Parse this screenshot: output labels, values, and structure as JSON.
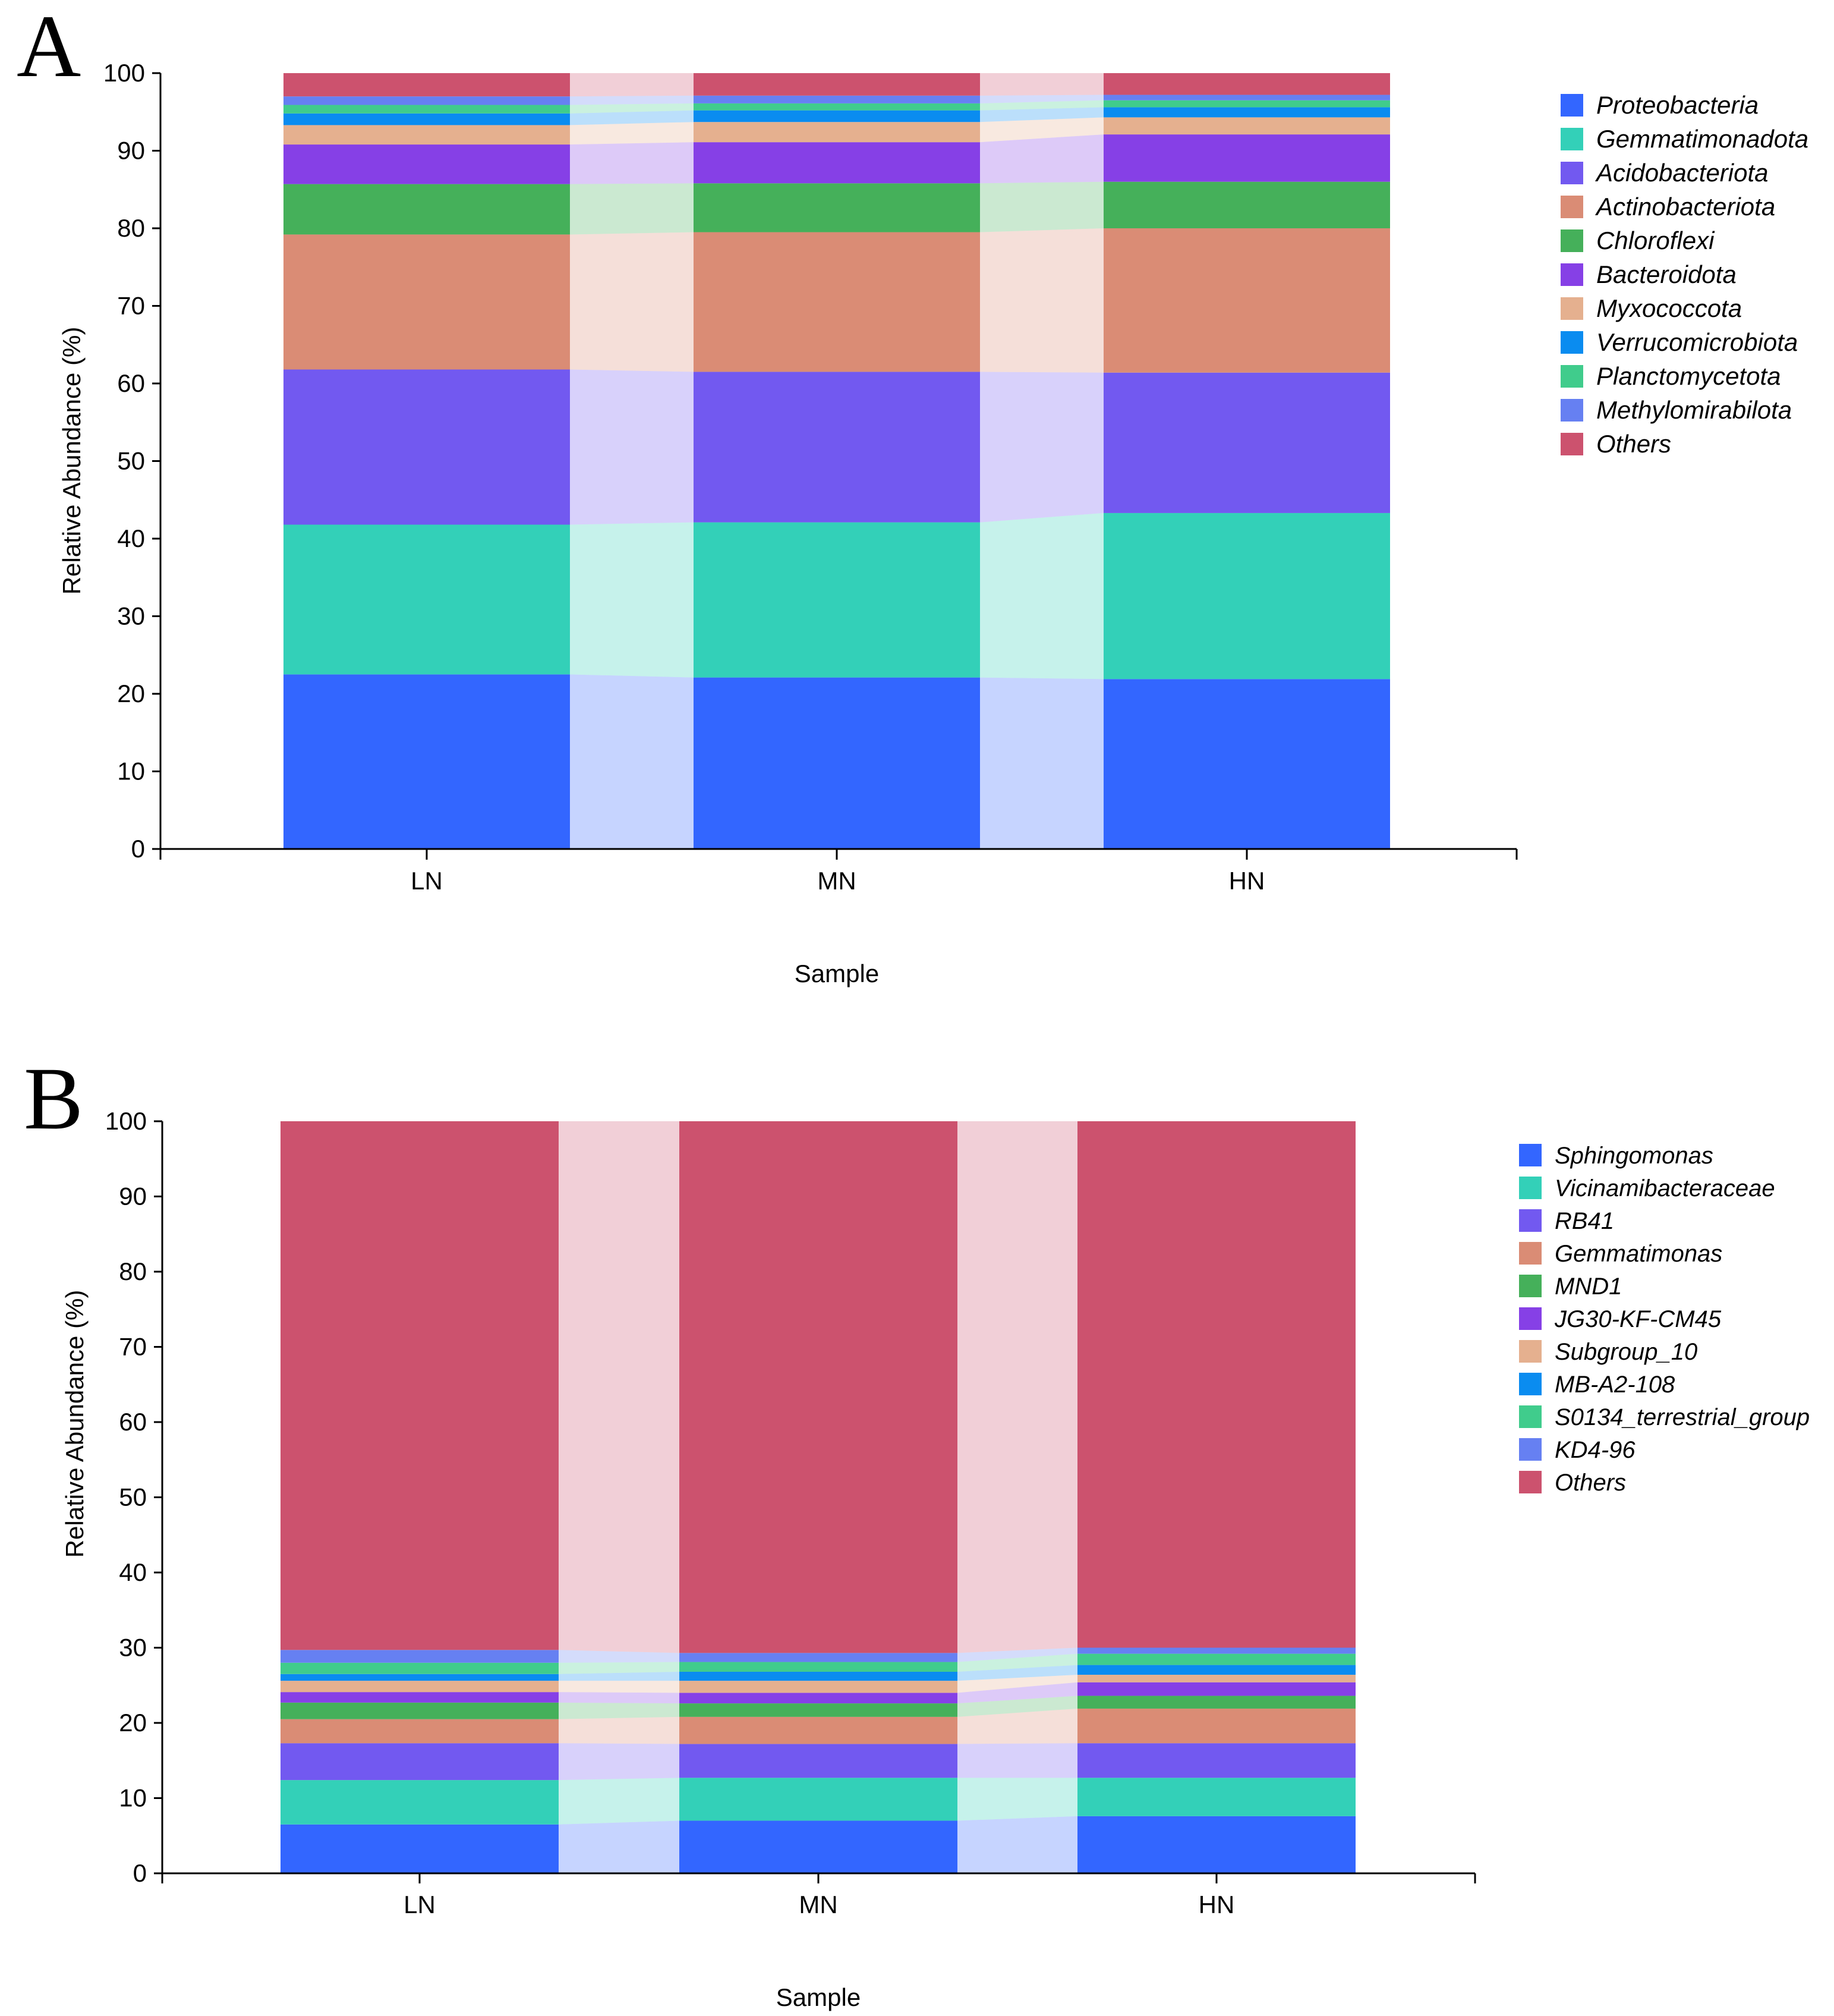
{
  "chart_data": [
    {
      "type": "bar",
      "stacked": true,
      "panel_label": "A",
      "title": "",
      "xlabel": "Sample",
      "ylabel": "Relative Abundance (%)",
      "ylim": [
        0,
        100
      ],
      "yticks": [
        0,
        10,
        20,
        30,
        40,
        50,
        60,
        70,
        80,
        90,
        100
      ],
      "categories": [
        "LN",
        "MN",
        "HN"
      ],
      "legend_position": "right",
      "series": [
        {
          "name": "Proteobacteria",
          "color": "#3366ff",
          "values": [
            22.5,
            22.1,
            21.9
          ]
        },
        {
          "name": "Gemmatimonadota",
          "color": "#33d0b8",
          "values": [
            19.3,
            20.0,
            21.4
          ]
        },
        {
          "name": "Acidobacteriota",
          "color": "#7259f0",
          "values": [
            20.0,
            19.4,
            18.1
          ]
        },
        {
          "name": "Actinobacteriota",
          "color": "#da8c75",
          "values": [
            17.4,
            18.0,
            18.6
          ]
        },
        {
          "name": "Chloroflexi",
          "color": "#45b05a",
          "values": [
            6.5,
            6.3,
            6.0
          ]
        },
        {
          "name": "Bacteroidota",
          "color": "#8640e6",
          "values": [
            5.1,
            5.3,
            6.1
          ]
        },
        {
          "name": "Myxococcota",
          "color": "#e5b08f",
          "values": [
            2.5,
            2.6,
            2.2
          ]
        },
        {
          "name": "Verrucomicrobiota",
          "color": "#0a8cf0",
          "values": [
            1.5,
            1.5,
            1.3
          ]
        },
        {
          "name": "Planctomycetota",
          "color": "#40cc8c",
          "values": [
            1.1,
            0.9,
            0.9
          ]
        },
        {
          "name": "Methylomirabilota",
          "color": "#6680f2",
          "values": [
            1.1,
            1.0,
            0.7
          ]
        },
        {
          "name": "Others",
          "color": "#cc526e",
          "values": [
            3.0,
            2.9,
            2.8
          ]
        }
      ]
    },
    {
      "type": "bar",
      "stacked": true,
      "panel_label": "B",
      "title": "",
      "xlabel": "Sample",
      "ylabel": "Relative Abundance (%)",
      "ylim": [
        0,
        100
      ],
      "yticks": [
        0,
        10,
        20,
        30,
        40,
        50,
        60,
        70,
        80,
        90,
        100
      ],
      "categories": [
        "LN",
        "MN",
        "HN"
      ],
      "legend_position": "right",
      "series": [
        {
          "name": "Sphingomonas",
          "color": "#3366ff",
          "values": [
            6.5,
            7.0,
            7.6
          ]
        },
        {
          "name": "Vicinamibacteraceae",
          "color": "#33d0b8",
          "values": [
            5.9,
            5.7,
            5.1
          ]
        },
        {
          "name": "RB41",
          "color": "#7259f0",
          "values": [
            4.9,
            4.5,
            4.6
          ]
        },
        {
          "name": "Gemmatimonas",
          "color": "#da8c75",
          "values": [
            3.2,
            3.6,
            4.6
          ]
        },
        {
          "name": "MND1",
          "color": "#45b05a",
          "values": [
            2.2,
            1.8,
            1.7
          ]
        },
        {
          "name": "JG30-KF-CM45",
          "color": "#8640e6",
          "values": [
            1.4,
            1.4,
            1.8
          ]
        },
        {
          "name": "Subgroup_10",
          "color": "#e5b08f",
          "values": [
            1.5,
            1.6,
            1.0
          ]
        },
        {
          "name": "MB-A2-108",
          "color": "#0a8cf0",
          "values": [
            0.9,
            1.2,
            1.3
          ]
        },
        {
          "name": "S0134_terrestrial_group",
          "color": "#40cc8c",
          "values": [
            1.5,
            1.3,
            1.5
          ]
        },
        {
          "name": "KD4-96",
          "color": "#6680f2",
          "values": [
            1.7,
            1.2,
            0.8
          ]
        },
        {
          "name": "Others",
          "color": "#cc526e",
          "values": [
            70.3,
            70.7,
            70.0
          ]
        }
      ]
    }
  ]
}
